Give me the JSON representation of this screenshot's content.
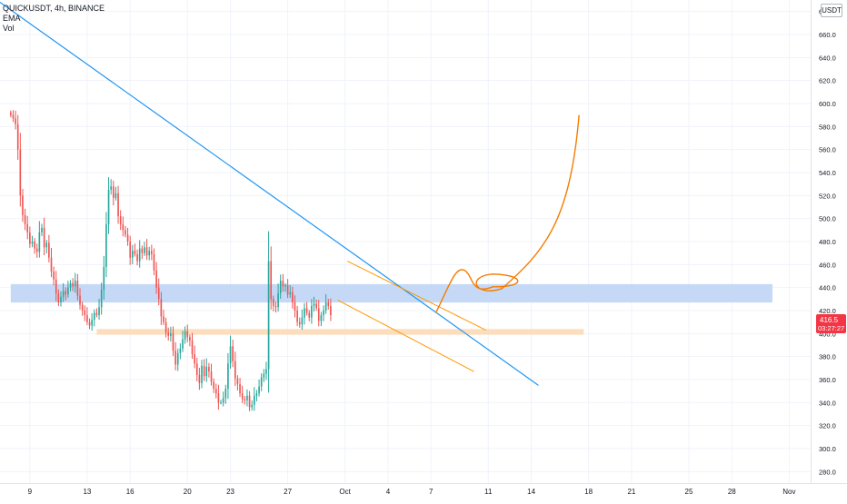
{
  "header": {
    "symbol_line": "QUICKUSDT, 4h, BINANCE",
    "indicator_1": "EMA",
    "indicator_2": "Vol"
  },
  "currency_badge": "USDT",
  "price_label": {
    "price": "416.5",
    "countdown": "03:27:27",
    "color": "#f23645"
  },
  "colors": {
    "up": "#26a69a",
    "down": "#ef5350",
    "trendline": "#2196f3",
    "zone_blue": "#bbd2f6",
    "zone_orange": "#fbd8b3",
    "channel": "#ff9800",
    "drawing": "#f57c00"
  },
  "chart_data": {
    "type": "candlestick",
    "symbol": "QUICKUSDT",
    "timeframe": "4h",
    "exchange": "BINANCE",
    "ylim": [
      270,
      690
    ],
    "y_ticks": [
      280,
      300,
      320,
      340,
      360,
      380,
      400,
      420,
      440,
      460,
      480,
      500,
      520,
      540,
      560,
      580,
      600,
      620,
      640,
      660,
      680
    ],
    "y_tick_labels": [
      "280.0",
      "300.0",
      "320.0",
      "340.0",
      "360.0",
      "380.0",
      "400.0",
      "420.0",
      "440.0",
      "460.0",
      "480.0",
      "500.0",
      "520.0",
      "540.0",
      "560.0",
      "580.0",
      "600.0",
      "620.0",
      "640.0",
      "660.0",
      "680.0"
    ],
    "x_ticks": [
      {
        "label": "9",
        "bar": 8
      },
      {
        "label": "13",
        "bar": 32
      },
      {
        "label": "16",
        "bar": 50
      },
      {
        "label": "20",
        "bar": 74
      },
      {
        "label": "23",
        "bar": 92
      },
      {
        "label": "27",
        "bar": 116
      },
      {
        "label": "Oct",
        "bar": 140
      },
      {
        "label": "4",
        "bar": 158
      },
      {
        "label": "7",
        "bar": 176
      },
      {
        "label": "11",
        "bar": 200
      },
      {
        "label": "14",
        "bar": 218
      },
      {
        "label": "18",
        "bar": 242
      },
      {
        "label": "21",
        "bar": 260
      },
      {
        "label": "25",
        "bar": 284
      },
      {
        "label": "28",
        "bar": 302
      },
      {
        "label": "Nov",
        "bar": 326
      }
    ],
    "bar_range": [
      -4.5,
      335
    ],
    "candles_close": [
      590,
      587,
      582,
      560,
      520,
      503,
      495,
      488,
      478,
      480,
      474,
      471,
      488,
      492,
      475,
      479,
      466,
      454,
      447,
      435,
      427,
      432,
      437,
      434,
      440,
      444,
      441,
      446,
      433,
      425,
      420,
      416,
      410,
      407,
      412,
      418,
      416,
      423,
      438,
      458,
      495,
      525,
      528,
      518,
      522,
      502,
      495,
      490,
      486,
      480,
      466,
      472,
      469,
      463,
      474,
      470,
      475,
      468,
      472,
      469,
      455,
      440,
      430,
      415,
      410,
      401,
      398,
      400,
      385,
      373,
      383,
      387,
      395,
      402,
      397,
      394,
      382,
      374,
      364,
      357,
      372,
      363,
      371,
      367,
      358,
      352,
      348,
      340,
      340,
      344,
      352,
      374,
      389,
      376,
      361,
      356,
      348,
      343,
      342,
      346,
      336,
      338,
      346,
      348,
      354,
      362,
      365,
      369,
      463,
      430,
      424,
      423,
      435,
      446,
      441,
      442,
      434,
      436,
      427,
      420,
      410,
      408,
      414,
      422,
      418,
      414,
      424,
      426,
      422,
      411,
      416,
      420,
      427,
      424,
      416
    ],
    "overlays": [
      {
        "type": "trendline",
        "from": {
          "bar": -4.5,
          "y": 688
        },
        "to": {
          "bar": 221,
          "y": 355
        }
      },
      {
        "type": "zone",
        "bar_from": 0,
        "bar_to": 319,
        "y_from": 427,
        "y_to": 443
      },
      {
        "type": "zone",
        "bar_from": 36,
        "bar_to": 240,
        "y_from": 399,
        "y_to": 404
      },
      {
        "type": "channel_line",
        "from": {
          "bar": 141,
          "y": 463
        },
        "to": {
          "bar": 199,
          "y": 403
        }
      },
      {
        "type": "channel_line",
        "from": {
          "bar": 137,
          "y": 429
        },
        "to": {
          "bar": 194,
          "y": 367
        }
      },
      {
        "type": "projection_path",
        "points": [
          {
            "bar": 178,
            "y": 418
          },
          {
            "bar": 190,
            "y": 455
          },
          {
            "bar": 200,
            "y": 447
          },
          {
            "bar": 212,
            "y": 440
          },
          {
            "bar": 238,
            "y": 590
          }
        ]
      }
    ]
  }
}
